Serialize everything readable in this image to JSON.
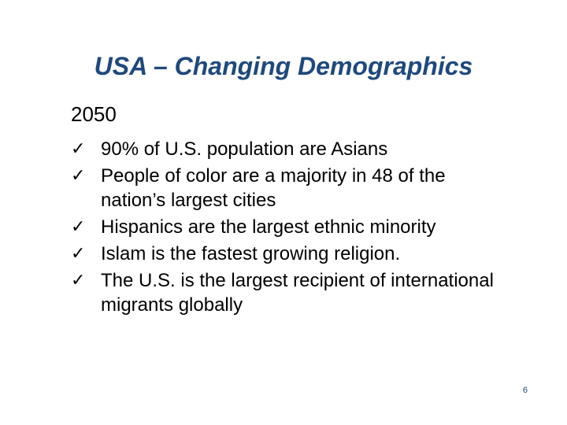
{
  "slide": {
    "title": "USA – Changing Demographics",
    "subheading": "2050",
    "bullet_icon": "check-mark-icon",
    "bullets": [
      {
        "text": "90% of U.S. population are Asians"
      },
      {
        "text": "People of color are a majority in 48 of the nation’s largest cities"
      },
      {
        "text": "Hispanics are the largest ethnic minority"
      },
      {
        "text": "Islam is the fastest growing religion."
      },
      {
        "text": "The U.S. is the largest recipient of international migrants globally"
      }
    ],
    "page_number": "6",
    "colors": {
      "title": "#1F497D",
      "text": "#000000",
      "background": "#FFFFFF"
    }
  }
}
